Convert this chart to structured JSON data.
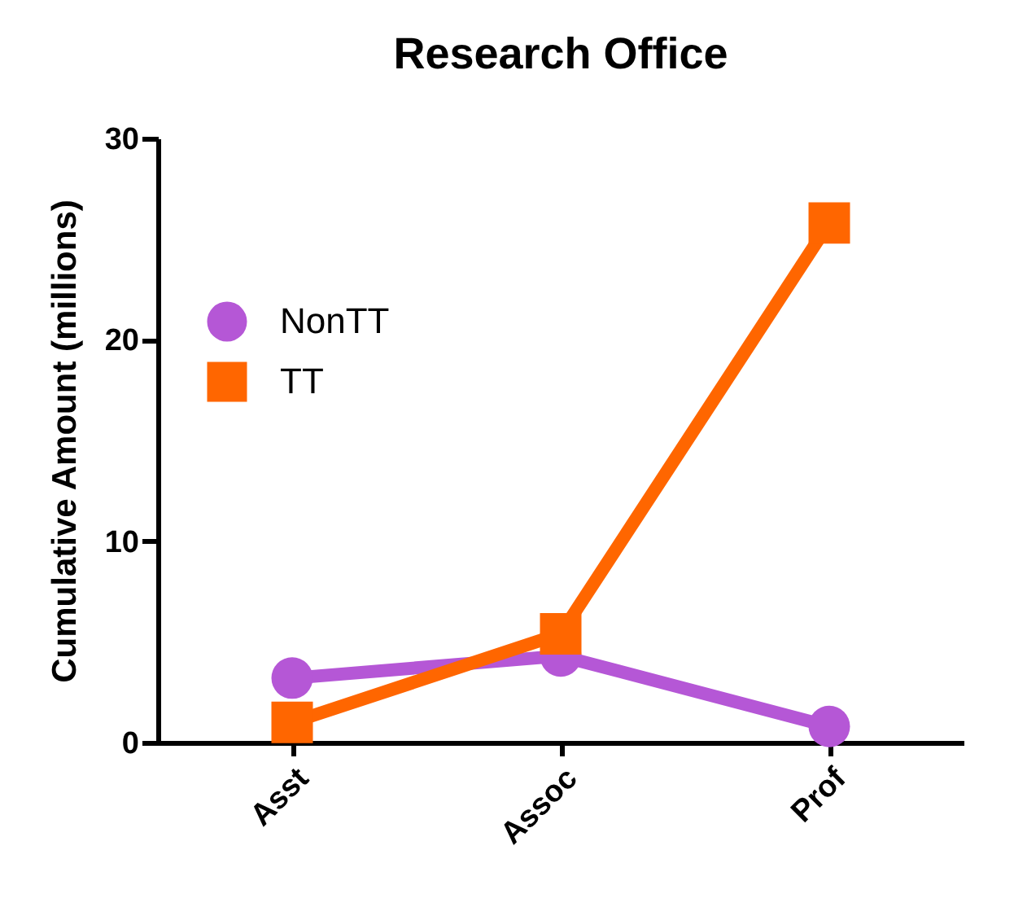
{
  "chart_data": {
    "type": "line",
    "title": "Research  Office",
    "ylabel": "Cumulative Amount (millions)",
    "categories": [
      "Asst",
      "Assoc",
      "Prof"
    ],
    "series": [
      {
        "name": "NonTT",
        "color": "#b557d6",
        "marker": "circle",
        "values": [
          3.2,
          4.3,
          0.8
        ]
      },
      {
        "name": "TT",
        "color": "#ff6600",
        "marker": "square",
        "values": [
          1.0,
          5.4,
          25.8
        ]
      }
    ],
    "ylim": [
      0,
      30
    ],
    "yticks": [
      0,
      10,
      20,
      30
    ],
    "grid": false,
    "legend": "top left"
  }
}
